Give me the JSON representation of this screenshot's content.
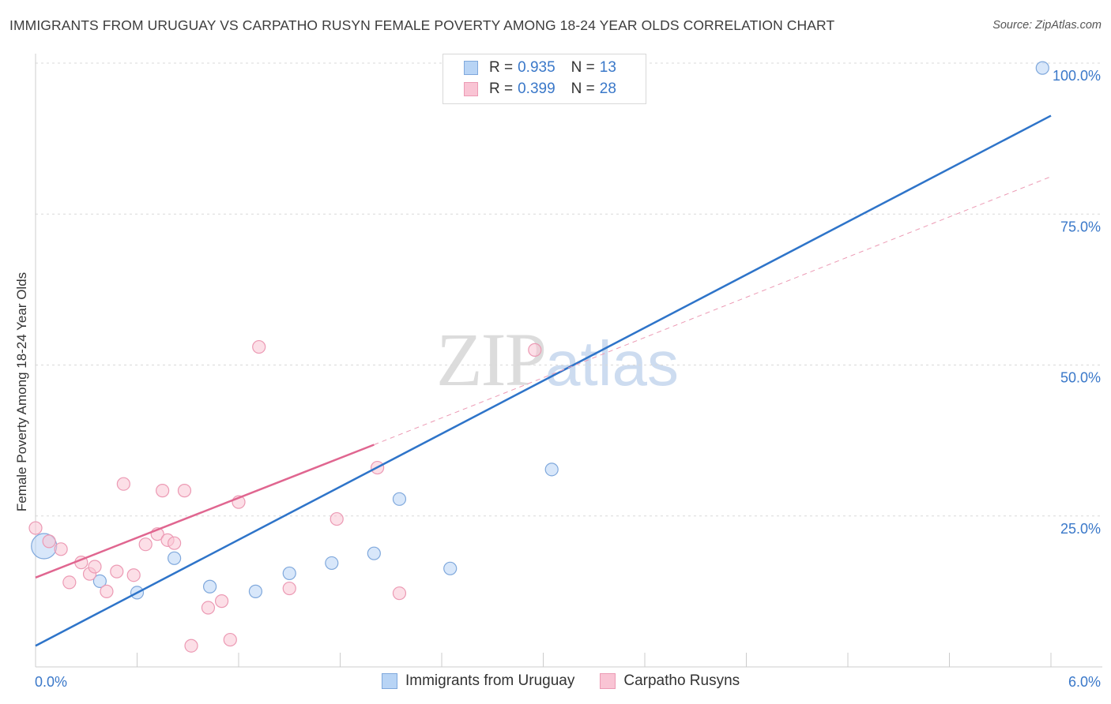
{
  "title": "IMMIGRANTS FROM URUGUAY VS CARPATHO RUSYN FEMALE POVERTY AMONG 18-24 YEAR OLDS CORRELATION CHART",
  "source": "Source: ZipAtlas.com",
  "watermark": {
    "zip": "ZIP",
    "atlas": "atlas"
  },
  "colors": {
    "blue_fill": "#b8d4f5",
    "blue_stroke": "#7fa8dc",
    "blue_line": "#2e74c9",
    "pink_fill": "#f9c4d4",
    "pink_stroke": "#ec9ab4",
    "pink_line": "#e06690",
    "axis_label": "#3a78c9",
    "grid": "#d9d9d9"
  },
  "legend": {
    "rows": [
      {
        "r_label": "R =",
        "r_value": "0.935",
        "n_label": "N =",
        "n_value": "13"
      },
      {
        "r_label": "R =",
        "r_value": "0.399",
        "n_label": "N =",
        "n_value": "28"
      }
    ]
  },
  "bottom_legend": [
    "Immigrants from Uruguay",
    "Carpatho Rusyns"
  ],
  "chart_data": {
    "type": "scatter",
    "title": "IMMIGRANTS FROM URUGUAY VS CARPATHO RUSYN FEMALE POVERTY AMONG 18-24 YEAR OLDS CORRELATION CHART",
    "xlabel": "",
    "ylabel": "Female Poverty Among 18-24 Year Olds",
    "xlim": [
      0,
      6
    ],
    "ylim": [
      0,
      100
    ],
    "x_tick_labels": [
      "0.0%",
      "6.0%"
    ],
    "y_tick_labels": [
      "25.0%",
      "50.0%",
      "75.0%",
      "100.0%"
    ],
    "y_ticks": [
      25,
      50,
      75,
      100
    ],
    "series": [
      {
        "name": "Immigrants from Uruguay",
        "color": "blue",
        "points": [
          {
            "x": 0.05,
            "y": 20.0,
            "big": true
          },
          {
            "x": 0.38,
            "y": 14.2
          },
          {
            "x": 0.6,
            "y": 12.3
          },
          {
            "x": 0.82,
            "y": 18.0
          },
          {
            "x": 1.03,
            "y": 13.3
          },
          {
            "x": 1.3,
            "y": 12.5
          },
          {
            "x": 1.5,
            "y": 15.5
          },
          {
            "x": 1.75,
            "y": 17.2
          },
          {
            "x": 2.0,
            "y": 18.8
          },
          {
            "x": 2.15,
            "y": 27.8
          },
          {
            "x": 2.45,
            "y": 16.3
          },
          {
            "x": 3.05,
            "y": 32.7
          },
          {
            "x": 5.95,
            "y": 99.2
          }
        ],
        "trend": {
          "x0": 0.0,
          "y0": 3.5,
          "x1": 6.0,
          "y1": 91.3,
          "style": "solid"
        }
      },
      {
        "name": "Carpatho Rusyns",
        "color": "pink",
        "points": [
          {
            "x": 0.0,
            "y": 23.0
          },
          {
            "x": 0.08,
            "y": 20.8
          },
          {
            "x": 0.2,
            "y": 14.0
          },
          {
            "x": 0.27,
            "y": 17.3
          },
          {
            "x": 0.32,
            "y": 15.4
          },
          {
            "x": 0.42,
            "y": 12.5
          },
          {
            "x": 0.48,
            "y": 15.8
          },
          {
            "x": 0.52,
            "y": 30.3
          },
          {
            "x": 0.58,
            "y": 15.2
          },
          {
            "x": 0.65,
            "y": 20.3
          },
          {
            "x": 0.72,
            "y": 22.0
          },
          {
            "x": 0.75,
            "y": 29.2
          },
          {
            "x": 0.78,
            "y": 21.0
          },
          {
            "x": 0.82,
            "y": 20.5
          },
          {
            "x": 0.88,
            "y": 29.2
          },
          {
            "x": 0.92,
            "y": 3.5
          },
          {
            "x": 1.02,
            "y": 9.8
          },
          {
            "x": 1.1,
            "y": 10.9
          },
          {
            "x": 1.15,
            "y": 4.5
          },
          {
            "x": 1.2,
            "y": 27.3
          },
          {
            "x": 1.32,
            "y": 53.0
          },
          {
            "x": 1.5,
            "y": 13.0
          },
          {
            "x": 1.78,
            "y": 24.5
          },
          {
            "x": 2.02,
            "y": 33.0
          },
          {
            "x": 2.15,
            "y": 12.2
          },
          {
            "x": 2.95,
            "y": 52.5
          },
          {
            "x": 0.15,
            "y": 19.5
          },
          {
            "x": 0.35,
            "y": 16.6
          }
        ],
        "trend": {
          "x0": 0.0,
          "y0": 14.8,
          "x1": 2.0,
          "y1": 36.8,
          "style": "solid"
        },
        "trend_extension": {
          "x0": 2.0,
          "y0": 36.8,
          "x1": 6.0,
          "y1": 81.2,
          "style": "dashed"
        }
      }
    ]
  }
}
